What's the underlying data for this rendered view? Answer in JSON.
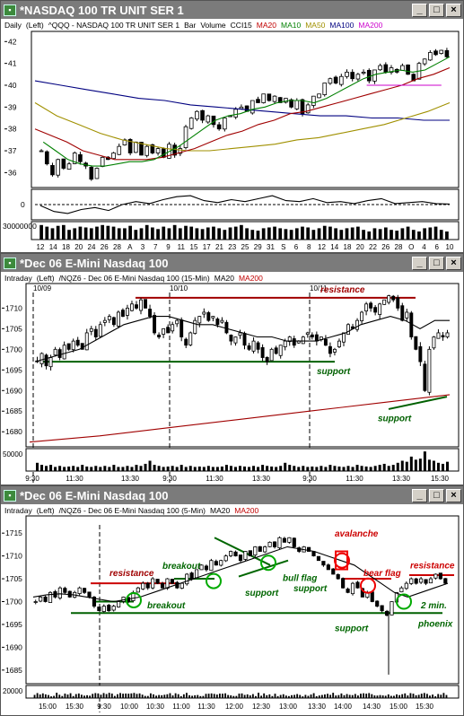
{
  "colors": {
    "up": "#ffffff",
    "down": "#000000",
    "ma20": "#a00000",
    "ma10": "#008000",
    "ma50": "#a09000",
    "ma100": "#000080",
    "ma200": "#cc00cc",
    "support": "#006000",
    "resistance": "#a00000",
    "annot_green": "#006600",
    "annot_red": "#cc0000",
    "circle_green": "#00aa00",
    "circle_red": "#ee0000"
  },
  "panels": [
    {
      "id": "p1",
      "window_title": "*NASDAQ 100 TR UNIT SER 1",
      "win_icons": [
        "minimize-icon",
        "maximize-icon",
        "close-icon"
      ],
      "header_items": [
        {
          "t": "Daily",
          "c": "#000"
        },
        {
          "t": "(Left)",
          "c": "#000"
        },
        {
          "t": "^QQQ - NASDAQ 100 TR UNIT SER 1",
          "c": "#000"
        },
        {
          "t": "Bar",
          "c": "#000"
        },
        {
          "t": "Volume",
          "c": "#000"
        },
        {
          "t": "CCI15",
          "c": "#000"
        },
        {
          "t": "MA20",
          "c": "#c00000"
        },
        {
          "t": "MA10",
          "c": "#008000"
        },
        {
          "t": "MA50",
          "c": "#a09000"
        },
        {
          "t": "MA100",
          "c": "#000080"
        },
        {
          "t": "MA200",
          "c": "#cc00cc"
        }
      ],
      "price_axis": {
        "labels": [
          "42",
          "41",
          "40",
          "39",
          "38",
          "37",
          "36"
        ],
        "min": 35.4,
        "max": 42.3
      },
      "date_labels": [
        "12",
        "14",
        "18",
        "20",
        "24",
        "26",
        "28",
        "A",
        "3",
        "7",
        "9",
        "11",
        "15",
        "17",
        "21",
        "23",
        "25",
        "29",
        "31",
        "S",
        "6",
        "8",
        "12",
        "14",
        "18",
        "20",
        "22",
        "26",
        "28",
        "O",
        "4",
        "6",
        "10"
      ],
      "volume_label": "30000000",
      "cci_zero_label": "0",
      "chart_data": {
        "type": "candlestick",
        "title": "^QQQ - NASDAQ 100 TR UNIT SER 1",
        "interval": "Daily",
        "ylim": [
          35.4,
          42.3
        ],
        "closes": [
          37.0,
          36.4,
          35.9,
          36.6,
          36.2,
          36.4,
          36.9,
          36.5,
          36.3,
          35.7,
          36.2,
          36.7,
          36.6,
          36.9,
          37.2,
          37.5,
          36.9,
          37.4,
          36.8,
          37.2,
          36.9,
          37.1,
          36.7,
          37.3,
          36.8,
          37.1,
          38.1,
          38.5,
          38.8,
          38.4,
          38.6,
          38.2,
          38.0,
          38.5,
          38.6,
          38.9,
          39.0,
          38.8,
          39.3,
          39.2,
          39.6,
          39.3,
          39.5,
          39.2,
          39.4,
          39.0,
          39.3,
          38.7,
          39.1,
          39.5,
          39.6,
          40.1,
          40.3,
          40.1,
          40.4,
          40.6,
          40.3,
          40.5,
          40.6,
          40.2,
          40.7,
          40.9,
          40.6,
          40.8,
          40.6,
          40.9,
          40.5,
          40.2,
          41.0,
          41.2,
          41.5,
          41.4,
          41.6,
          41.3
        ],
        "ma_lines": [
          {
            "name": "MA10",
            "values": [
              37.4,
              37.0,
              36.6,
              36.4,
              36.3,
              36.3,
              36.4,
              36.5,
              36.5,
              36.6,
              36.9,
              37.2,
              37.6,
              38.0,
              38.4,
              38.6,
              38.7,
              38.9,
              39.0,
              39.2,
              39.3,
              39.3,
              39.2,
              39.4,
              39.7,
              40.0,
              40.3,
              40.5,
              40.6,
              40.7,
              40.6,
              40.7,
              41.0,
              41.3
            ]
          },
          {
            "name": "MA20",
            "values": [
              38.0,
              37.7,
              37.4,
              37.0,
              36.8,
              36.6,
              36.6,
              36.6,
              36.7,
              36.9,
              37.1,
              37.4,
              37.7,
              37.9,
              38.2,
              38.4,
              38.7,
              38.8,
              39.0,
              39.2,
              39.4,
              39.6,
              39.8,
              40.0,
              40.3,
              40.5,
              40.8
            ]
          },
          {
            "name": "MA50",
            "values": [
              39.2,
              38.6,
              38.2,
              37.8,
              37.5,
              37.3,
              37.1,
              37.0,
              37.0,
              37.1,
              37.2,
              37.3,
              37.5,
              37.6,
              37.8,
              38.0,
              38.2,
              38.5,
              38.8,
              39.2
            ]
          },
          {
            "name": "MA100",
            "values": [
              40.2,
              40.0,
              39.8,
              39.6,
              39.4,
              39.3,
              39.1,
              39.0,
              38.9,
              38.8,
              38.7,
              38.6,
              38.6,
              38.5,
              38.5,
              38.4,
              38.4
            ]
          },
          {
            "name": "MA200",
            "values": [
              40.0,
              40.0,
              40.0
            ]
          }
        ],
        "cci": [
          -0.1,
          -0.7,
          -0.9,
          -0.5,
          -0.3,
          -0.6,
          0.0,
          0.3,
          0.1,
          0.5,
          0.8,
          0.9,
          0.4,
          0.2,
          0.5,
          0.3,
          0.6,
          0.9,
          0.4,
          0.3,
          0.6,
          0.2,
          0.3,
          0.1,
          0.4,
          0.6,
          0.1,
          0.2,
          0.3,
          0.1,
          0.05
        ],
        "volume": [
          0.9,
          0.8,
          0.7,
          0.85,
          0.9,
          0.6,
          0.7,
          0.8,
          0.75,
          0.7,
          0.8,
          0.9,
          0.85,
          0.8,
          0.7,
          0.7,
          0.85,
          0.6,
          0.7,
          0.9,
          0.75,
          0.65,
          0.8,
          0.7,
          0.9,
          0.7,
          0.85,
          0.8,
          0.7,
          0.65,
          0.75,
          0.8,
          0.7,
          0.6,
          0.75,
          0.8,
          0.9,
          0.7,
          0.6,
          0.55,
          0.7,
          0.75,
          0.8,
          0.7,
          0.65,
          0.6,
          0.7,
          0.8,
          0.75,
          0.6,
          0.7,
          0.85,
          0.8,
          0.7,
          0.6,
          0.7,
          0.75,
          0.8,
          0.6,
          0.5,
          0.7,
          0.65,
          0.75,
          0.6,
          0.55,
          0.7,
          0.8,
          0.6,
          0.5,
          0.7,
          0.75,
          0.8,
          0.6,
          0.5
        ]
      }
    },
    {
      "id": "p2",
      "window_title": "*Dec 06  E-Mini Nasdaq 100",
      "win_icons": [
        "minimize-icon",
        "maximize-icon",
        "close-icon"
      ],
      "header_items": [
        {
          "t": "Intraday",
          "c": "#000"
        },
        {
          "t": "(Left)",
          "c": "#000"
        },
        {
          "t": "/NQZ6 - Dec 06  E-Mini Nasdaq 100 (15-Min)",
          "c": "#000"
        },
        {
          "t": "MA20",
          "c": "#000"
        },
        {
          "t": "MA200",
          "c": "#c00000"
        }
      ],
      "date_markers": [
        "10/09",
        "10/10",
        "10/11"
      ],
      "price_axis": {
        "labels": [
          "1710",
          "1705",
          "1700",
          "1695",
          "1690",
          "1685",
          "1680"
        ],
        "min": 1677,
        "max": 1714
      },
      "time_labels": [
        "9:30",
        "11:30",
        "13:30",
        "9:30",
        "11:30",
        "13:30",
        "9:30",
        "11:30",
        "13:30",
        "15:30"
      ],
      "volume_label": "50000",
      "annotations": [
        {
          "text": "resistance",
          "color": "#a00000"
        },
        {
          "text": "support",
          "color": "#006000"
        },
        {
          "text": "support",
          "color": "#006000"
        }
      ],
      "chart_data": {
        "type": "candlestick",
        "title": "/NQZ6 - Dec 06  E-Mini Nasdaq 100 (15-Min)",
        "ylim": [
          1677,
          1714
        ],
        "closes": [
          1697,
          1699,
          1696,
          1698,
          1700,
          1698,
          1701,
          1700,
          1702,
          1701,
          1700,
          1704,
          1705,
          1703,
          1706,
          1707,
          1708,
          1706,
          1709,
          1708,
          1710,
          1711,
          1710,
          1712,
          1710,
          1708,
          1704,
          1703,
          1705,
          1704,
          1706,
          1707,
          1703,
          1701,
          1704,
          1707,
          1708,
          1709,
          1707,
          1708,
          1706,
          1707,
          1704,
          1702,
          1703,
          1704,
          1701,
          1700,
          1702,
          1700,
          1698,
          1697,
          1700,
          1699,
          1701,
          1702,
          1703,
          1701,
          1702,
          1703,
          1704,
          1703,
          1702,
          1703,
          1701,
          1699,
          1700,
          1702,
          1704,
          1706,
          1705,
          1707,
          1709,
          1711,
          1710,
          1709,
          1711,
          1712,
          1713,
          1712,
          1710,
          1707,
          1709,
          1703,
          1700,
          1697,
          1690,
          1700,
          1703,
          1704,
          1703,
          1704
        ],
        "ma20": [
          1697,
          1698,
          1699,
          1700,
          1702,
          1704,
          1706,
          1707,
          1708,
          1708,
          1707,
          1706,
          1706,
          1705,
          1704,
          1703,
          1703,
          1702,
          1702,
          1702,
          1703,
          1704,
          1706,
          1707,
          1708,
          1707,
          1705,
          1707,
          1707
        ],
        "ma200": [
          1677.5,
          1679,
          1681,
          1683,
          1685,
          1687,
          1689
        ],
        "volume": [
          0.4,
          0.3,
          0.25,
          0.3,
          0.2,
          0.25,
          0.2,
          0.22,
          0.25,
          0.2,
          0.3,
          0.22,
          0.2,
          0.25,
          0.2,
          0.25,
          0.2,
          0.3,
          0.2,
          0.2,
          0.25,
          0.2,
          0.3,
          0.25,
          0.35,
          0.5,
          0.3,
          0.25,
          0.2,
          0.22,
          0.25,
          0.2,
          0.3,
          0.2,
          0.25,
          0.2,
          0.22,
          0.2,
          0.25,
          0.2,
          0.2,
          0.22,
          0.3,
          0.25,
          0.2,
          0.25,
          0.22,
          0.2,
          0.25,
          0.2,
          0.3,
          0.25,
          0.22,
          0.2,
          0.25,
          0.4,
          0.3,
          0.25,
          0.2,
          0.25,
          0.2,
          0.22,
          0.2,
          0.25,
          0.2,
          0.3,
          0.25,
          0.22,
          0.2,
          0.25,
          0.2,
          0.3,
          0.25,
          0.22,
          0.2,
          0.25,
          0.3,
          0.35,
          0.25,
          0.3,
          0.4,
          0.5,
          0.45,
          0.7,
          0.55,
          0.6,
          0.95,
          0.55,
          0.5,
          0.4,
          0.35,
          0.45
        ]
      }
    },
    {
      "id": "p3",
      "window_title": "*Dec 06  E-Mini Nasdaq 100",
      "win_icons": [
        "minimize-icon",
        "maximize-icon",
        "close-icon"
      ],
      "header_items": [
        {
          "t": "Intraday",
          "c": "#000"
        },
        {
          "t": "(Left)",
          "c": "#000"
        },
        {
          "t": "/NQZ6 - Dec 06  E-Mini Nasdaq 100 (5-Min)",
          "c": "#000"
        },
        {
          "t": "MA20",
          "c": "#000"
        },
        {
          "t": "MA200",
          "c": "#c00000"
        }
      ],
      "date_marker": "10/11",
      "price_axis": {
        "labels": [
          "1715",
          "1710",
          "1705",
          "1700",
          "1695",
          "1690",
          "1685"
        ],
        "min": 1683,
        "max": 1717
      },
      "time_labels": [
        "15:00",
        "15:30",
        "9:30",
        "10:00",
        "10:30",
        "11:00",
        "11:30",
        "12:00",
        "12:30",
        "13:00",
        "13:30",
        "14:00",
        "14:30",
        "15:00",
        "15:30"
      ],
      "volume_label": "20000",
      "annotations": [
        {
          "text": "resistance",
          "color": "#a00000"
        },
        {
          "text": "breakout",
          "color": "#006600"
        },
        {
          "text": "breakout",
          "color": "#006600"
        },
        {
          "text": "support",
          "color": "#006600"
        },
        {
          "text": "bull flag",
          "color": "#006600"
        },
        {
          "text": "avalanche",
          "color": "#cc0000"
        },
        {
          "text": "bear flag",
          "color": "#cc0000"
        },
        {
          "text": "support",
          "color": "#006600"
        },
        {
          "text": "support",
          "color": "#006600"
        },
        {
          "text": "resistance",
          "color": "#cc0000"
        },
        {
          "text": "2 min.",
          "color": "#006600"
        },
        {
          "text": "phoenix",
          "color": "#006600"
        }
      ],
      "chart_data": {
        "type": "candlestick",
        "title": "/NQZ6 - Dec 06  E-Mini Nasdaq 100 (5-Min)",
        "ylim": [
          1683,
          1717
        ],
        "closes": [
          1700,
          1701,
          1700,
          1702,
          1701,
          1703,
          1702,
          1701,
          1702,
          1703,
          1702,
          1701,
          1699,
          1698,
          1699,
          1698,
          1699,
          1700,
          1701,
          1700,
          1702,
          1703,
          1704,
          1703,
          1705,
          1704,
          1703,
          1705,
          1704,
          1703,
          1704,
          1706,
          1705,
          1707,
          1708,
          1707,
          1709,
          1708,
          1709,
          1710,
          1711,
          1710,
          1709,
          1711,
          1710,
          1712,
          1711,
          1712,
          1713,
          1712,
          1714,
          1713,
          1714,
          1712,
          1711,
          1712,
          1711,
          1710,
          1709,
          1708,
          1707,
          1706,
          1705,
          1703,
          1702,
          1704,
          1703,
          1701,
          1702,
          1700,
          1699,
          1698,
          1697,
          1700,
          1702,
          1703,
          1704,
          1705,
          1704,
          1705,
          1704,
          1705,
          1706,
          1705,
          1704
        ],
        "ma20": [
          1701,
          1701.5,
          1701.7,
          1701.5,
          1701,
          1700.5,
          1700,
          1700.5,
          1701,
          1702,
          1703,
          1704,
          1705,
          1706,
          1707,
          1708,
          1709,
          1710,
          1711,
          1712,
          1711.5,
          1711,
          1710,
          1709,
          1708,
          1706,
          1704,
          1702,
          1701,
          1702,
          1703,
          1704
        ]
      }
    }
  ]
}
